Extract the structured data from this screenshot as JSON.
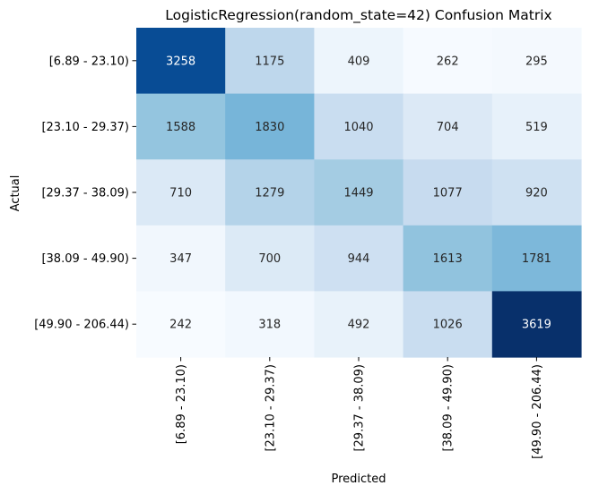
{
  "chart_data": {
    "type": "heatmap",
    "title": "LogisticRegression(random_state=42) Confusion Matrix",
    "xlabel": "Predicted",
    "ylabel": "Actual",
    "x_categories": [
      "[6.89 - 23.10)",
      "[23.10 - 29.37)",
      "[29.37 - 38.09)",
      "[38.09 - 49.90)",
      "[49.90 - 206.44)"
    ],
    "y_categories": [
      "[6.89 - 23.10)",
      "[23.10 - 29.37)",
      "[29.37 - 38.09)",
      "[38.09 - 49.90)",
      "[49.90 - 206.44)"
    ],
    "values": [
      [
        3258,
        1175,
        409,
        262,
        295
      ],
      [
        1588,
        1830,
        1040,
        704,
        519
      ],
      [
        710,
        1279,
        1449,
        1077,
        920
      ],
      [
        347,
        700,
        944,
        1613,
        1781
      ],
      [
        242,
        318,
        492,
        1026,
        3619
      ]
    ],
    "colormap": "Blues",
    "colorbar": false,
    "annotations": true
  }
}
